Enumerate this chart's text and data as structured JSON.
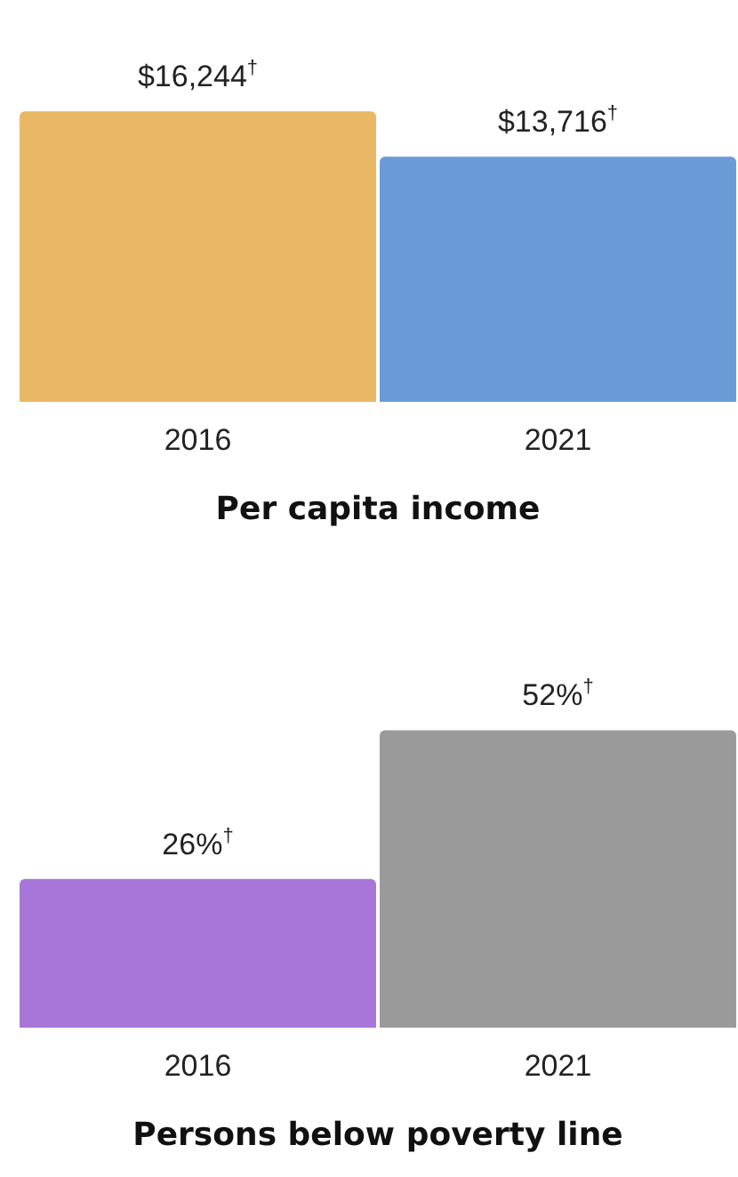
{
  "chart_data": [
    {
      "type": "bar",
      "xlabel": "Per capita income",
      "categories": [
        "2016",
        "2021"
      ],
      "values": [
        16244,
        13716
      ],
      "colors": [
        "#e9b865",
        "#6a9bd6"
      ],
      "value_labels": [
        "$16,244$^{†}$",
        "$13,716$^{†}$"
      ],
      "legend": false,
      "grid": false
    },
    {
      "type": "bar",
      "xlabel": "Persons below poverty line",
      "categories": [
        "2016",
        "2021"
      ],
      "values": [
        26,
        52
      ],
      "colors": [
        "#a876d8",
        "#9a9a9a"
      ],
      "value_labels": [
        "26%$^{†}$",
        "52%$^{†}$"
      ],
      "legend": false,
      "grid": false
    }
  ]
}
